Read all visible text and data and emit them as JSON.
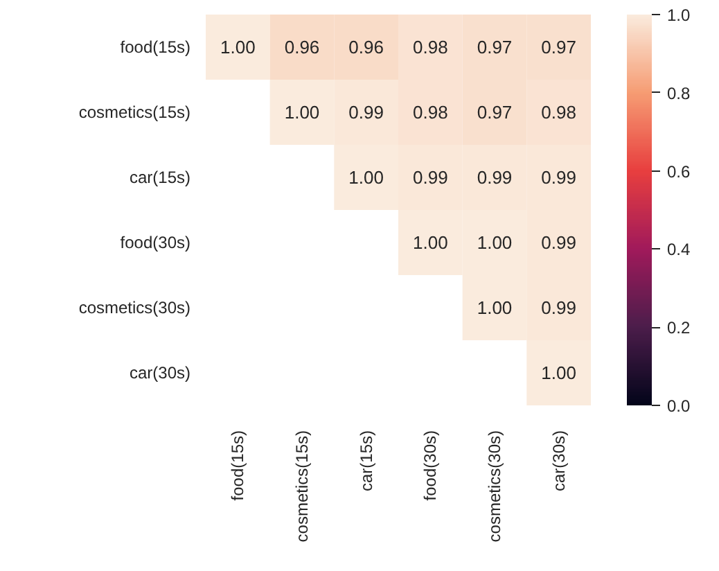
{
  "chart_data": {
    "type": "heatmap",
    "categories": [
      "food(15s)",
      "cosmetics(15s)",
      "car(15s)",
      "food(30s)",
      "cosmetics(30s)",
      "car(30s)"
    ],
    "y_categories": [
      "food(15s)",
      "cosmetics(15s)",
      "car(15s)",
      "food(30s)",
      "cosmetics(30s)",
      "car(30s)"
    ],
    "cells": [
      [
        1.0,
        0.96,
        0.96,
        0.98,
        0.97,
        0.97
      ],
      [
        null,
        1.0,
        0.99,
        0.98,
        0.97,
        0.98
      ],
      [
        null,
        null,
        1.0,
        0.99,
        0.99,
        0.99
      ],
      [
        null,
        null,
        null,
        1.0,
        1.0,
        0.99
      ],
      [
        null,
        null,
        null,
        null,
        1.0,
        0.99
      ],
      [
        null,
        null,
        null,
        null,
        null,
        1.0
      ]
    ],
    "cell_labels": [
      [
        "1.00",
        "0.96",
        "0.96",
        "0.98",
        "0.97",
        "0.97"
      ],
      [
        null,
        "1.00",
        "0.99",
        "0.98",
        "0.97",
        "0.98"
      ],
      [
        null,
        null,
        "1.00",
        "0.99",
        "0.99",
        "0.99"
      ],
      [
        null,
        null,
        null,
        "1.00",
        "1.00",
        "0.99"
      ],
      [
        null,
        null,
        null,
        null,
        "1.00",
        "0.99"
      ],
      [
        null,
        null,
        null,
        null,
        null,
        "1.00"
      ]
    ],
    "clim": [
      0.0,
      1.0
    ],
    "cticks": [
      {
        "value": 0.0,
        "label": "0.0"
      },
      0.2,
      0.4,
      0.6,
      0.8,
      {
        "value": 1.0,
        "label": "1.0"
      }
    ]
  }
}
